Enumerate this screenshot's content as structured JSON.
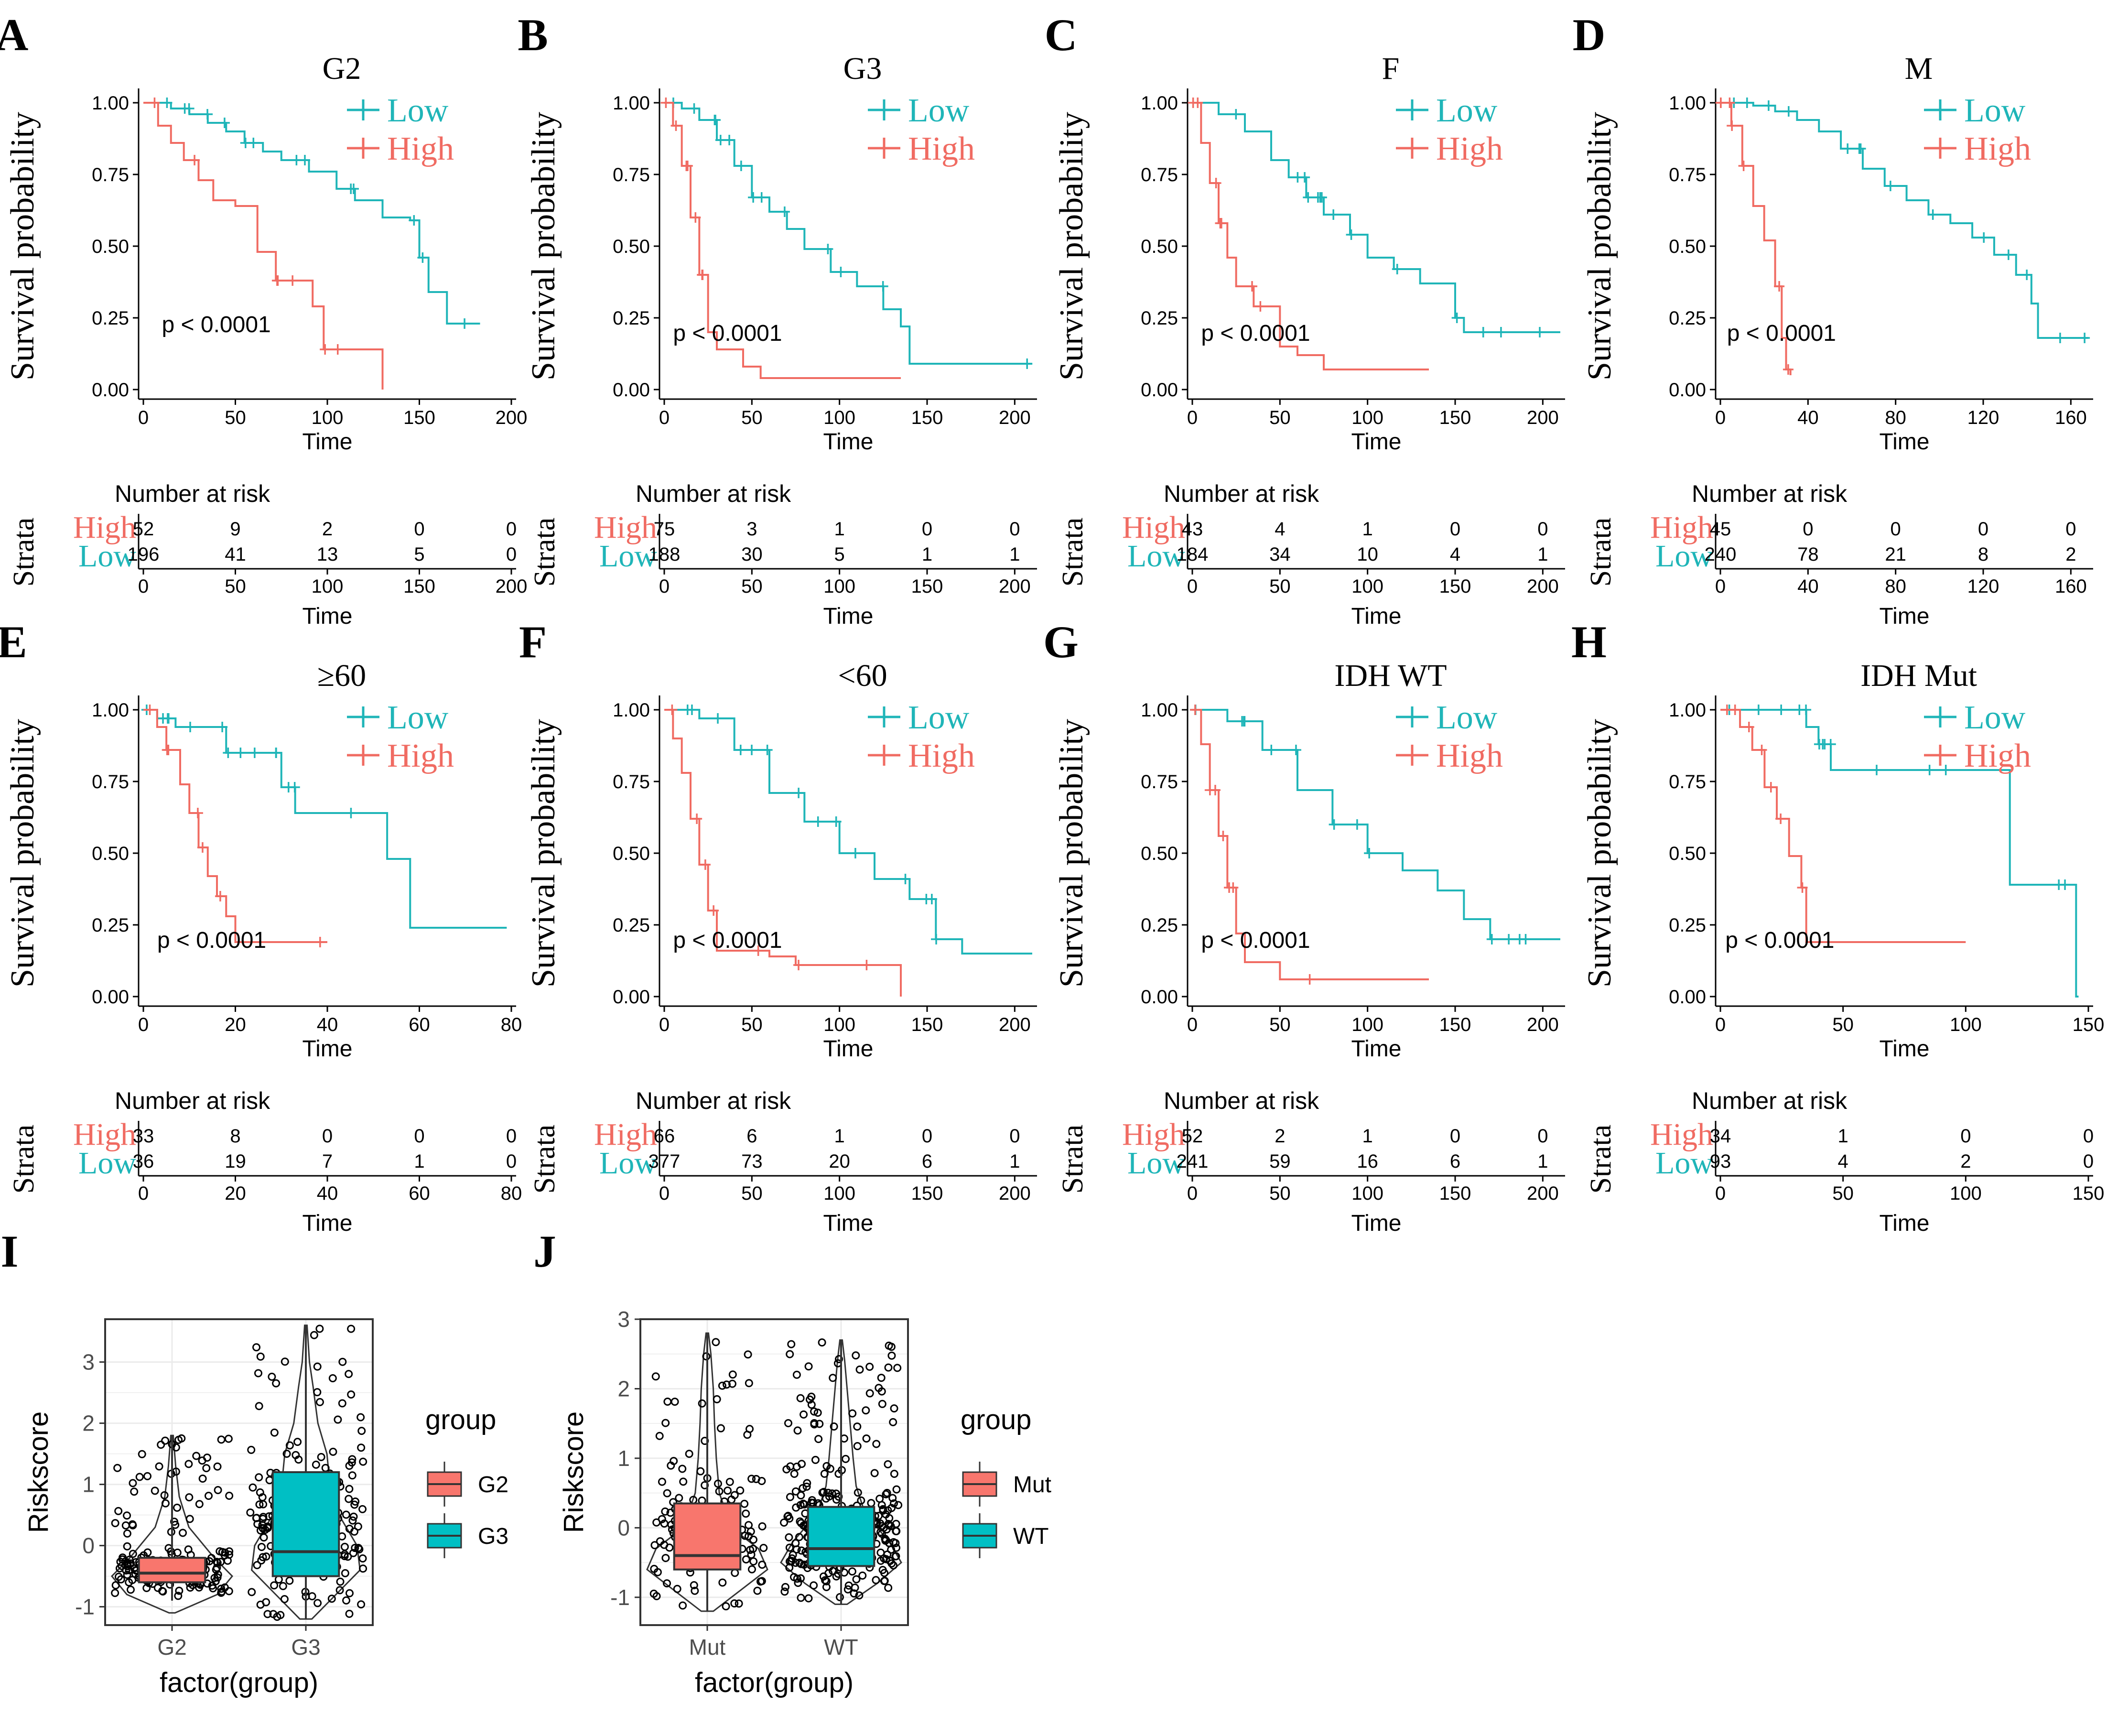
{
  "colors": {
    "low": "#1fb5b8",
    "high": "#f06b62",
    "mut": "#f8766d",
    "wt": "#00bfc4",
    "axis": "#000000",
    "grid": "#ebebeb",
    "tick_label_gray": "#4d4d4d"
  },
  "labels": {
    "time": "Time",
    "survival": "Survival probability",
    "number_at_risk": "Number at risk",
    "strata": "Strata",
    "low": "Low",
    "high": "High",
    "pvalue": "p < 0.0001",
    "riskscore": "Riskscore",
    "factor_group": "factor(group)",
    "group": "group"
  },
  "chart_data": [
    {
      "type": "line",
      "letter": "A",
      "title": "G2",
      "xlabel": "Time",
      "ylabel": "Survival probability",
      "xlim": [
        0,
        200
      ],
      "xticks": [
        0,
        50,
        100,
        150,
        200
      ],
      "ylim": [
        0,
        1
      ],
      "yticks": [
        "0.00",
        "0.25",
        "0.50",
        "0.75",
        "1.00"
      ],
      "pvalue": "p < 0.0001",
      "pvalue_pos": [
        10,
        0.2
      ],
      "series": [
        {
          "name": "Low",
          "color": "#1fb5b8",
          "x": [
            0,
            15,
            25,
            35,
            45,
            55,
            65,
            75,
            90,
            105,
            115,
            130,
            145,
            150,
            155,
            165,
            183
          ],
          "y": [
            1.0,
            0.98,
            0.96,
            0.93,
            0.9,
            0.86,
            0.83,
            0.8,
            0.76,
            0.7,
            0.66,
            0.6,
            0.59,
            0.46,
            0.34,
            0.23,
            0.23
          ]
        },
        {
          "name": "High",
          "color": "#f06b62",
          "x": [
            0,
            8,
            15,
            22,
            30,
            38,
            50,
            62,
            72,
            92,
            98,
            108,
            130
          ],
          "y": [
            1.0,
            0.92,
            0.86,
            0.8,
            0.73,
            0.66,
            0.64,
            0.48,
            0.38,
            0.29,
            0.14,
            0.14,
            0.0
          ]
        }
      ],
      "risk": {
        "xticks": [
          0,
          50,
          100,
          150,
          200
        ],
        "high": [
          "52",
          "9",
          "2",
          "0",
          "0"
        ],
        "low": [
          "196",
          "41",
          "13",
          "5",
          "0"
        ]
      }
    },
    {
      "type": "line",
      "letter": "B",
      "title": "G3",
      "xlabel": "Time",
      "ylabel": "Survival probability",
      "xlim": [
        0,
        210
      ],
      "xticks": [
        0,
        50,
        100,
        150,
        200
      ],
      "ylim": [
        0,
        1
      ],
      "yticks": [
        "0.00",
        "0.25",
        "0.50",
        "0.75",
        "1.00"
      ],
      "pvalue": "p < 0.0001",
      "pvalue_pos": [
        5,
        0.17
      ],
      "series": [
        {
          "name": "Low",
          "color": "#1fb5b8",
          "x": [
            0,
            10,
            20,
            30,
            40,
            50,
            60,
            70,
            80,
            95,
            110,
            125,
            135,
            140,
            210
          ],
          "y": [
            1.0,
            0.98,
            0.94,
            0.87,
            0.78,
            0.67,
            0.62,
            0.56,
            0.49,
            0.41,
            0.36,
            0.28,
            0.22,
            0.09,
            0.09
          ]
        },
        {
          "name": "High",
          "color": "#f06b62",
          "x": [
            0,
            5,
            10,
            15,
            20,
            25,
            30,
            45,
            55,
            135
          ],
          "y": [
            1.0,
            0.92,
            0.78,
            0.6,
            0.4,
            0.2,
            0.14,
            0.08,
            0.04,
            0.04
          ]
        }
      ],
      "risk": {
        "xticks": [
          0,
          50,
          100,
          150,
          200
        ],
        "high": [
          "75",
          "3",
          "1",
          "0",
          "0"
        ],
        "low": [
          "188",
          "30",
          "5",
          "1",
          "1"
        ]
      }
    },
    {
      "type": "line",
      "letter": "C",
      "title": "F",
      "xlabel": "Time",
      "ylabel": "Survival probability",
      "xlim": [
        0,
        210
      ],
      "xticks": [
        0,
        50,
        100,
        150,
        200
      ],
      "ylim": [
        0,
        1
      ],
      "yticks": [
        "0.00",
        "0.25",
        "0.50",
        "0.75",
        "1.00"
      ],
      "pvalue": "p < 0.0001",
      "pvalue_pos": [
        5,
        0.17
      ],
      "series": [
        {
          "name": "Low",
          "color": "#1fb5b8",
          "x": [
            0,
            15,
            30,
            45,
            55,
            65,
            75,
            90,
            100,
            115,
            130,
            150,
            155,
            210
          ],
          "y": [
            1.0,
            0.96,
            0.9,
            0.8,
            0.74,
            0.67,
            0.61,
            0.54,
            0.46,
            0.42,
            0.37,
            0.25,
            0.2,
            0.2
          ]
        },
        {
          "name": "High",
          "color": "#f06b62",
          "x": [
            0,
            5,
            10,
            15,
            20,
            25,
            35,
            50,
            60,
            75,
            135
          ],
          "y": [
            1.0,
            0.86,
            0.72,
            0.58,
            0.46,
            0.36,
            0.29,
            0.15,
            0.12,
            0.07,
            0.07
          ]
        }
      ],
      "risk": {
        "xticks": [
          0,
          50,
          100,
          150,
          200
        ],
        "high": [
          "43",
          "4",
          "1",
          "0",
          "0"
        ],
        "low": [
          "184",
          "34",
          "10",
          "4",
          "1"
        ]
      }
    },
    {
      "type": "line",
      "letter": "D",
      "title": "M",
      "xlabel": "Time",
      "ylabel": "Survival probability",
      "xlim": [
        0,
        168
      ],
      "xticks": [
        0,
        40,
        80,
        120,
        160
      ],
      "ylim": [
        0,
        1
      ],
      "yticks": [
        "0.00",
        "0.25",
        "0.50",
        "0.75",
        "1.00"
      ],
      "pvalue": "p < 0.0001",
      "pvalue_pos": [
        3,
        0.17
      ],
      "series": [
        {
          "name": "Low",
          "color": "#1fb5b8",
          "x": [
            0,
            15,
            25,
            35,
            45,
            55,
            65,
            75,
            85,
            95,
            105,
            115,
            125,
            135,
            142,
            145,
            168
          ],
          "y": [
            1.0,
            0.99,
            0.97,
            0.94,
            0.9,
            0.84,
            0.77,
            0.71,
            0.66,
            0.61,
            0.58,
            0.53,
            0.47,
            0.4,
            0.3,
            0.18,
            0.18
          ]
        },
        {
          "name": "High",
          "color": "#f06b62",
          "x": [
            0,
            5,
            10,
            15,
            20,
            25,
            28,
            30,
            32
          ],
          "y": [
            1.0,
            0.92,
            0.78,
            0.64,
            0.52,
            0.36,
            0.18,
            0.07,
            0.05
          ]
        }
      ],
      "risk": {
        "xticks": [
          0,
          40,
          80,
          120,
          160
        ],
        "high": [
          "45",
          "0",
          "0",
          "0",
          "0"
        ],
        "low": [
          "240",
          "78",
          "21",
          "8",
          "2"
        ]
      }
    },
    {
      "type": "line",
      "letter": "E",
      "title": "≥60",
      "xlabel": "Time",
      "ylabel": "Survival probability",
      "xlim": [
        0,
        80
      ],
      "xticks": [
        0,
        20,
        40,
        60,
        80
      ],
      "ylim": [
        0,
        1
      ],
      "yticks": [
        "0.00",
        "0.25",
        "0.50",
        "0.75",
        "1.00"
      ],
      "pvalue": "p < 0.0001",
      "pvalue_pos": [
        3,
        0.17
      ],
      "series": [
        {
          "name": "Low",
          "color": "#1fb5b8",
          "x": [
            0,
            3,
            7,
            18,
            22,
            30,
            33,
            53,
            58,
            79
          ],
          "y": [
            1.0,
            0.97,
            0.94,
            0.85,
            0.85,
            0.73,
            0.64,
            0.48,
            0.24,
            0.24
          ]
        },
        {
          "name": "High",
          "color": "#f06b62",
          "x": [
            0,
            3,
            5,
            8,
            10,
            12,
            14,
            16,
            18,
            20,
            40
          ],
          "y": [
            1.0,
            0.94,
            0.86,
            0.74,
            0.64,
            0.52,
            0.42,
            0.35,
            0.28,
            0.19,
            0.19
          ]
        }
      ],
      "risk": {
        "xticks": [
          0,
          20,
          40,
          60,
          80
        ],
        "high": [
          "33",
          "8",
          "0",
          "0",
          "0"
        ],
        "low": [
          "36",
          "19",
          "7",
          "1",
          "0"
        ]
      }
    },
    {
      "type": "line",
      "letter": "F",
      "title": "<60",
      "xlabel": "Time",
      "ylabel": "Survival probability",
      "xlim": [
        0,
        210
      ],
      "xticks": [
        0,
        50,
        100,
        150,
        200
      ],
      "ylim": [
        0,
        1
      ],
      "yticks": [
        "0.00",
        "0.25",
        "0.50",
        "0.75",
        "1.00"
      ],
      "pvalue": "p < 0.0001",
      "pvalue_pos": [
        5,
        0.17
      ],
      "series": [
        {
          "name": "Low",
          "color": "#1fb5b8",
          "x": [
            0,
            20,
            40,
            60,
            80,
            100,
            120,
            140,
            155,
            170,
            210
          ],
          "y": [
            1.0,
            0.97,
            0.86,
            0.71,
            0.61,
            0.5,
            0.41,
            0.34,
            0.2,
            0.15,
            0.15
          ]
        },
        {
          "name": "High",
          "color": "#f06b62",
          "x": [
            0,
            5,
            10,
            15,
            20,
            25,
            30,
            60,
            75,
            135
          ],
          "y": [
            1.0,
            0.9,
            0.78,
            0.62,
            0.46,
            0.3,
            0.16,
            0.14,
            0.11,
            0.0
          ]
        }
      ],
      "risk": {
        "xticks": [
          0,
          50,
          100,
          150,
          200
        ],
        "high": [
          "66",
          "6",
          "1",
          "0",
          "0"
        ],
        "low": [
          "377",
          "73",
          "20",
          "6",
          "1"
        ]
      }
    },
    {
      "type": "line",
      "letter": "G",
      "title": "IDH WT",
      "xlabel": "Time",
      "ylabel": "Survival probability",
      "xlim": [
        0,
        210
      ],
      "xticks": [
        0,
        50,
        100,
        150,
        200
      ],
      "ylim": [
        0,
        1
      ],
      "yticks": [
        "0.00",
        "0.25",
        "0.50",
        "0.75",
        "1.00"
      ],
      "pvalue": "p < 0.0001",
      "pvalue_pos": [
        5,
        0.17
      ],
      "series": [
        {
          "name": "Low",
          "color": "#1fb5b8",
          "x": [
            0,
            20,
            40,
            60,
            80,
            100,
            120,
            140,
            155,
            170,
            210
          ],
          "y": [
            1.0,
            0.96,
            0.86,
            0.72,
            0.6,
            0.5,
            0.44,
            0.37,
            0.27,
            0.2,
            0.2
          ]
        },
        {
          "name": "High",
          "color": "#f06b62",
          "x": [
            0,
            5,
            10,
            15,
            20,
            25,
            30,
            50,
            135
          ],
          "y": [
            1.0,
            0.88,
            0.72,
            0.56,
            0.38,
            0.22,
            0.12,
            0.06,
            0.06
          ]
        }
      ],
      "risk": {
        "xticks": [
          0,
          50,
          100,
          150,
          200
        ],
        "high": [
          "52",
          "2",
          "1",
          "0",
          "0"
        ],
        "low": [
          "241",
          "59",
          "16",
          "6",
          "1"
        ]
      }
    },
    {
      "type": "line",
      "letter": "H",
      "title": "IDH Mut",
      "xlabel": "Time",
      "ylabel": "Survival probability",
      "xlim": [
        0,
        150
      ],
      "xticks": [
        0,
        50,
        100,
        150
      ],
      "ylim": [
        0,
        1
      ],
      "yticks": [
        "0.00",
        "0.25",
        "0.50",
        "0.75",
        "1.00"
      ],
      "pvalue": "p < 0.0001",
      "pvalue_pos": [
        2,
        0.17
      ],
      "series": [
        {
          "name": "Low",
          "color": "#1fb5b8",
          "x": [
            0,
            30,
            35,
            40,
            45,
            118,
            145,
            146
          ],
          "y": [
            1.0,
            1.0,
            0.94,
            0.88,
            0.79,
            0.39,
            0.0,
            0.0
          ]
        },
        {
          "name": "High",
          "color": "#f06b62",
          "x": [
            0,
            8,
            13,
            18,
            23,
            28,
            33,
            35,
            100
          ],
          "y": [
            1.0,
            0.94,
            0.86,
            0.73,
            0.62,
            0.49,
            0.38,
            0.19,
            0.19
          ]
        }
      ],
      "risk": {
        "xticks": [
          0,
          50,
          100,
          150
        ],
        "high": [
          "34",
          "1",
          "0",
          "0"
        ],
        "low": [
          "93",
          "4",
          "2",
          "0"
        ]
      }
    },
    {
      "type": "violin-box",
      "letter": "I",
      "xlabel": "factor(group)",
      "ylabel": "Riskscore",
      "ylim": [
        -1.3,
        3.7
      ],
      "yticks": [
        -1,
        0,
        1,
        2,
        3
      ],
      "categories": [
        "G2",
        "G3"
      ],
      "legend_title": "group",
      "legend": [
        {
          "name": "G2",
          "color": "#f8766d"
        },
        {
          "name": "G3",
          "color": "#00bfc4"
        }
      ],
      "boxes": [
        {
          "name": "G2",
          "color": "#f8766d",
          "min": -0.9,
          "q1": -0.6,
          "median": -0.45,
          "q3": -0.2,
          "max": 1.8,
          "violin_y": [
            -1.1,
            -0.8,
            -0.5,
            -0.2,
            0.3,
            0.8,
            1.3,
            1.8
          ],
          "violin_w": [
            0.05,
            0.75,
            1.0,
            0.7,
            0.28,
            0.12,
            0.06,
            0.02
          ],
          "n": 196
        },
        {
          "name": "G3",
          "color": "#00bfc4",
          "min": -1.2,
          "q1": -0.5,
          "median": -0.1,
          "q3": 1.2,
          "max": 3.6,
          "violin_y": [
            -1.2,
            -0.8,
            -0.4,
            0.0,
            0.5,
            1.0,
            1.5,
            2.0,
            2.6,
            3.0,
            3.6
          ],
          "violin_w": [
            0.1,
            0.5,
            0.9,
            0.85,
            0.55,
            0.4,
            0.35,
            0.2,
            0.12,
            0.06,
            0.02
          ],
          "n": 188
        }
      ]
    },
    {
      "type": "violin-box",
      "letter": "J",
      "xlabel": "factor(group)",
      "ylabel": "Riskscore",
      "ylim": [
        -1.4,
        3.0
      ],
      "yticks": [
        -1,
        0,
        1,
        2,
        3
      ],
      "categories": [
        "Mut",
        "WT"
      ],
      "legend_title": "group",
      "legend": [
        {
          "name": "Mut",
          "color": "#f8766d"
        },
        {
          "name": "WT",
          "color": "#00bfc4"
        }
      ],
      "boxes": [
        {
          "name": "Mut",
          "color": "#f8766d",
          "min": -1.2,
          "q1": -0.6,
          "median": -0.4,
          "q3": 0.35,
          "max": 2.8,
          "violin_y": [
            -1.2,
            -0.9,
            -0.6,
            -0.3,
            0.0,
            0.5,
            1.0,
            1.5,
            2.0,
            2.5,
            2.8
          ],
          "violin_w": [
            0.1,
            0.55,
            1.0,
            0.85,
            0.4,
            0.2,
            0.15,
            0.12,
            0.1,
            0.06,
            0.02
          ],
          "n": 150
        },
        {
          "name": "WT",
          "color": "#00bfc4",
          "min": -1.1,
          "q1": -0.55,
          "median": -0.3,
          "q3": 0.3,
          "max": 2.7,
          "violin_y": [
            -1.1,
            -0.8,
            -0.5,
            -0.2,
            0.2,
            0.6,
            1.0,
            1.5,
            2.0,
            2.4,
            2.7
          ],
          "violin_w": [
            0.1,
            0.6,
            1.0,
            0.8,
            0.4,
            0.25,
            0.2,
            0.15,
            0.1,
            0.06,
            0.02
          ],
          "n": 290
        }
      ]
    }
  ]
}
